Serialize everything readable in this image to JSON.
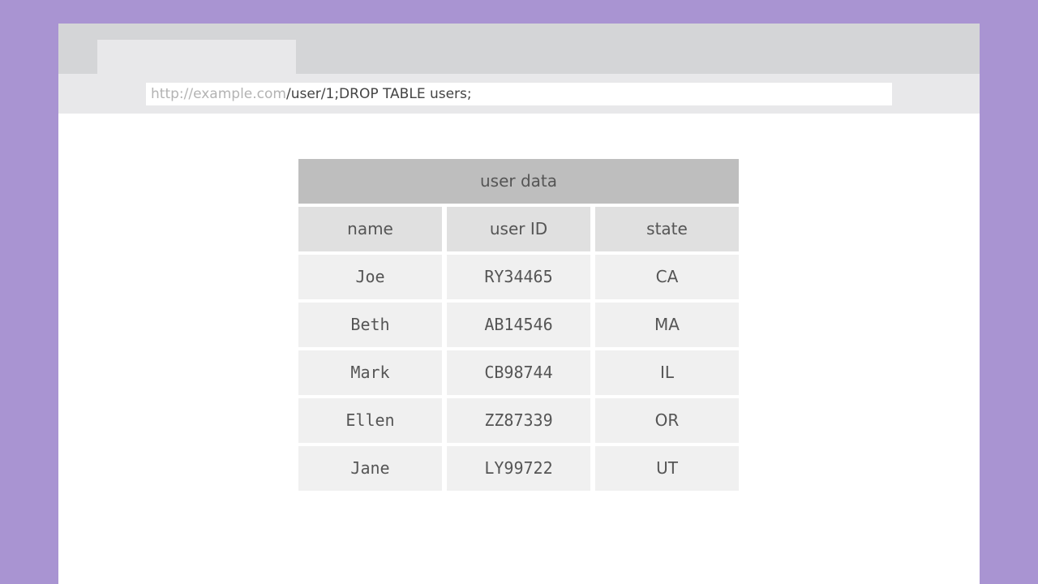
{
  "browser": {
    "url_host": "http://example.com",
    "url_path": "/user/1;DROP TABLE users;"
  },
  "table": {
    "caption": "user data",
    "columns": [
      "name",
      "user ID",
      "state"
    ],
    "rows": [
      [
        "Joe",
        "RY34465",
        "CA"
      ],
      [
        "Beth",
        "AB14546",
        "MA"
      ],
      [
        "Mark",
        "CB98744",
        "IL"
      ],
      [
        "Ellen",
        "ZZ87339",
        "OR"
      ],
      [
        "Jane",
        "LY99722",
        "UT"
      ]
    ]
  },
  "colors": {
    "background": "#a994d2",
    "caption": "#bebebe",
    "header": "#e0e0e0",
    "cell": "#f0f0f0"
  }
}
